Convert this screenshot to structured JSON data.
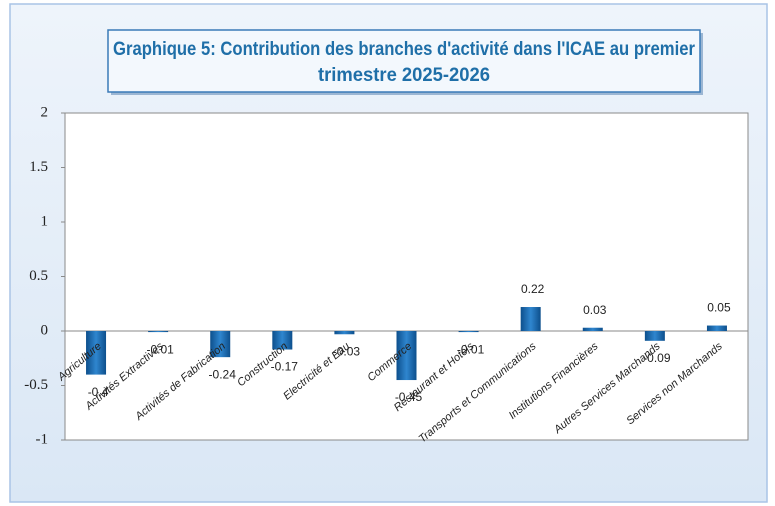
{
  "chart_data": {
    "type": "bar",
    "title": [
      "Graphique 5: Contribution des branches d'activité dans l'ICAE au premier",
      "trimestre  2025-2026"
    ],
    "categories": [
      "Agriculture",
      "Activités Extractives",
      "Activités de Fabrication",
      "Construction",
      "Electricité et Eau",
      "Commerce",
      "Restaurant et Hotels",
      "Transports et Communications",
      "Institutions Financières",
      "Autres Services Marchands",
      "Services non Marchands"
    ],
    "values": [
      -0.4,
      -0.01,
      -0.24,
      -0.17,
      -0.03,
      -0.45,
      -0.01,
      0.22,
      0.03,
      -0.09,
      0.05
    ],
    "color": "#1f6fb2",
    "ylim": [
      -1,
      2
    ],
    "yticks": [
      -1,
      -0.5,
      0,
      0.5,
      1,
      1.5,
      2
    ],
    "grid": false
  }
}
